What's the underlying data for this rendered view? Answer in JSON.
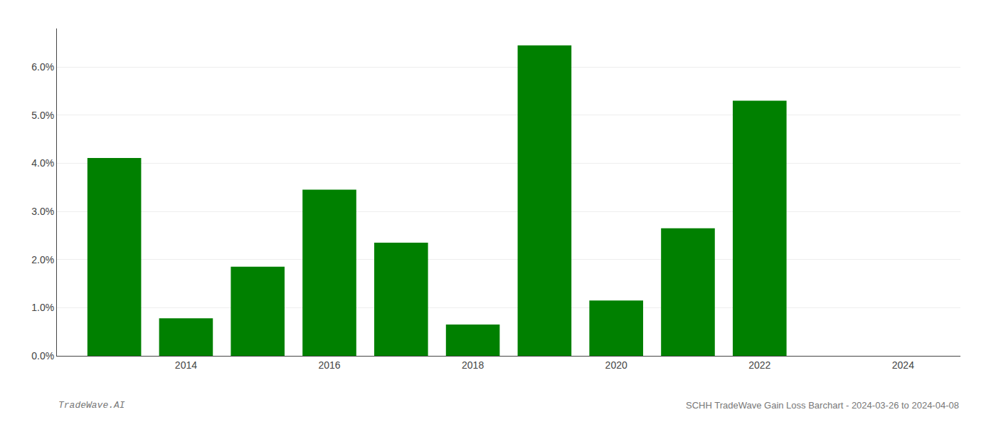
{
  "chart_data": {
    "type": "bar",
    "x": [
      2013,
      2014,
      2015,
      2016,
      2017,
      2018,
      2019,
      2020,
      2021,
      2022,
      2023
    ],
    "values": [
      0.0411,
      0.0078,
      0.0185,
      0.0345,
      0.0235,
      0.0065,
      0.0645,
      0.0115,
      0.0265,
      0.053,
      0.0
    ],
    "color": "#008000",
    "xlim": [
      2012.2,
      2024.8
    ],
    "xticks": [
      2014,
      2016,
      2018,
      2020,
      2022,
      2024
    ],
    "ylim": [
      0,
      0.068
    ],
    "yticks": [
      {
        "value": 0.0,
        "label": "0.0%"
      },
      {
        "value": 0.01,
        "label": "1.0%"
      },
      {
        "value": 0.02,
        "label": "2.0%"
      },
      {
        "value": 0.03,
        "label": "3.0%"
      },
      {
        "value": 0.04,
        "label": "4.0%"
      },
      {
        "value": 0.05,
        "label": "5.0%"
      },
      {
        "value": 0.06,
        "label": "6.0%"
      }
    ],
    "grid": true,
    "annotations": [
      "TradeWave.AI",
      "SCHH TradeWave Gain Loss Barchart - 2024-03-26 to 2024-04-08"
    ]
  }
}
